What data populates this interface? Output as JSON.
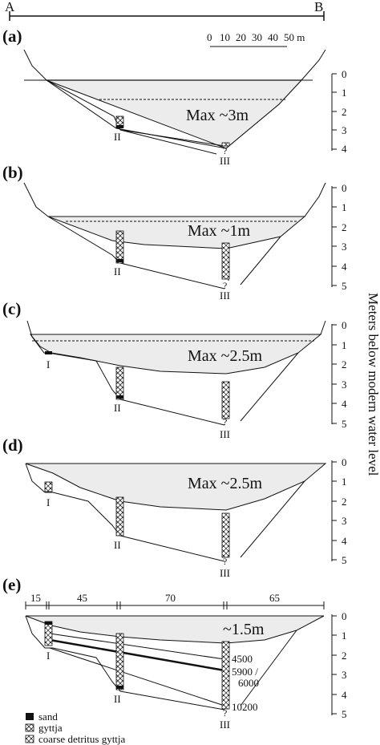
{
  "transect": {
    "start": "A",
    "end": "B"
  },
  "scale": {
    "ticks": [
      "0",
      "10",
      "20",
      "30",
      "40",
      "50 m"
    ]
  },
  "y_axis": {
    "label": "Meters below modern water level",
    "ticks": [
      "0",
      "1",
      "2",
      "3",
      "4",
      "5"
    ]
  },
  "cores": {
    "I": "I",
    "II": "II",
    "III": "III",
    "unknown": "?"
  },
  "panels": [
    {
      "letter": "(a)",
      "max_label": "Max ~3m"
    },
    {
      "letter": "(b)",
      "max_label": "Max ~1m"
    },
    {
      "letter": "(c)",
      "max_label": "Max ~2.5m"
    },
    {
      "letter": "(d)",
      "max_label": "Max ~2.5m"
    },
    {
      "letter": "(e)",
      "max_label": "~1.5m"
    }
  ],
  "segments": [
    "15",
    "45",
    "70",
    "65"
  ],
  "ages": {
    "a1": "4500",
    "a2": "5900 /",
    "a3": "6000",
    "a4": "10200"
  },
  "legend": {
    "sand": "sand",
    "gyttja": "gyttja",
    "coarse": "coarse detritus gyttja"
  },
  "colors": {
    "water": "#ececec",
    "line": "#111111"
  }
}
